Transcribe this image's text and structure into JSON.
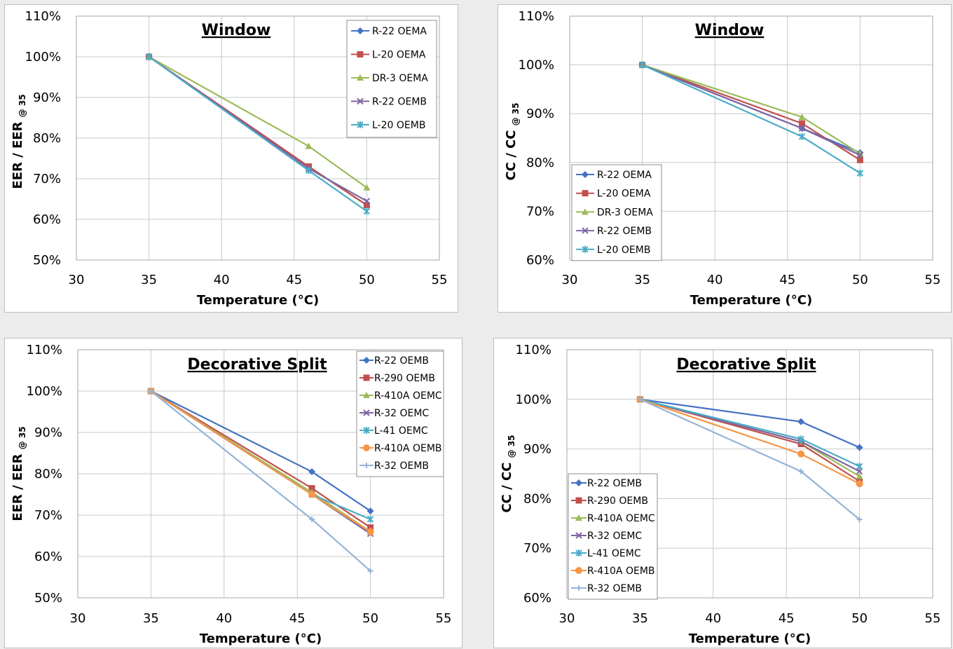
{
  "chart_data": [
    {
      "type": "line",
      "title": "Window",
      "xlabel": "Temperature (°C)",
      "ylabel_main": "EER / EER",
      "ylabel_sub": "@ 35",
      "xlim": [
        30,
        55
      ],
      "xticks": [
        30,
        35,
        40,
        45,
        50,
        55
      ],
      "ylim": [
        50,
        110
      ],
      "yticks": [
        50,
        60,
        70,
        80,
        90,
        100,
        110
      ],
      "y_format": "percent",
      "grid": true,
      "legend_position": "top-right",
      "x": [
        35,
        46,
        50
      ],
      "series": [
        {
          "name": "R-22 OEMA",
          "values": [
            100,
            73,
            63.5
          ],
          "color": "#4472c4",
          "marker": "diamond"
        },
        {
          "name": "L-20 OEMA",
          "values": [
            100,
            73,
            63.5
          ],
          "color": "#c0504d",
          "marker": "square"
        },
        {
          "name": "DR-3 OEMA",
          "values": [
            100,
            78,
            67.8
          ],
          "color": "#9bbb59",
          "marker": "triangle"
        },
        {
          "name": "R-22 OEMB",
          "values": [
            100,
            72.5,
            64.5
          ],
          "color": "#8064a2",
          "marker": "x"
        },
        {
          "name": "L-20 OEMB",
          "values": [
            100,
            72,
            62
          ],
          "color": "#4bacc6",
          "marker": "star"
        }
      ]
    },
    {
      "type": "line",
      "title": "Window",
      "xlabel": "Temperature (°C)",
      "ylabel_main": "CC / CC",
      "ylabel_sub": "@ 35",
      "xlim": [
        30,
        55
      ],
      "xticks": [
        30,
        35,
        40,
        45,
        50,
        55
      ],
      "ylim": [
        60,
        110
      ],
      "yticks": [
        60,
        70,
        80,
        90,
        100,
        110
      ],
      "y_format": "percent",
      "grid": true,
      "legend_position": "bottom-left",
      "x": [
        35,
        46,
        50
      ],
      "series": [
        {
          "name": "R-22 OEMA",
          "values": [
            100,
            87,
            82
          ],
          "color": "#4472c4",
          "marker": "diamond"
        },
        {
          "name": "L-20 OEMA",
          "values": [
            100,
            88,
            80.5
          ],
          "color": "#c0504d",
          "marker": "square"
        },
        {
          "name": "DR-3 OEMA",
          "values": [
            100,
            89.3,
            81.8
          ],
          "color": "#9bbb59",
          "marker": "triangle"
        },
        {
          "name": "R-22 OEMB",
          "values": [
            100,
            87,
            81.5
          ],
          "color": "#8064a2",
          "marker": "x"
        },
        {
          "name": "L-20 OEMB",
          "values": [
            100,
            85.3,
            77.8
          ],
          "color": "#4bacc6",
          "marker": "star"
        }
      ]
    },
    {
      "type": "line",
      "title": "Decorative Split",
      "xlabel": "Temperature (°C)",
      "ylabel_main": "EER / EER",
      "ylabel_sub": "@ 35",
      "xlim": [
        30,
        55
      ],
      "xticks": [
        30,
        35,
        40,
        45,
        50,
        55
      ],
      "ylim": [
        50,
        110
      ],
      "yticks": [
        50,
        60,
        70,
        80,
        90,
        100,
        110
      ],
      "y_format": "percent",
      "grid": true,
      "legend_position": "top-right",
      "x": [
        35,
        46,
        50
      ],
      "series": [
        {
          "name": "R-22 OEMB",
          "values": [
            100,
            80.5,
            71
          ],
          "color": "#4472c4",
          "marker": "diamond"
        },
        {
          "name": "R-290 OEMB",
          "values": [
            100,
            76.5,
            67
          ],
          "color": "#c0504d",
          "marker": "square"
        },
        {
          "name": "R-410A OEMC",
          "values": [
            100,
            75.5,
            66
          ],
          "color": "#9bbb59",
          "marker": "triangle"
        },
        {
          "name": "R-32 OEMC",
          "values": [
            100,
            75,
            65.5
          ],
          "color": "#8064a2",
          "marker": "x"
        },
        {
          "name": "L-41 OEMC",
          "values": [
            100,
            75,
            69
          ],
          "color": "#4bacc6",
          "marker": "star"
        },
        {
          "name": "R-410A OEMB",
          "values": [
            100,
            75,
            66
          ],
          "color": "#f79646",
          "marker": "circle"
        },
        {
          "name": "R-32 OEMB",
          "values": [
            100,
            69,
            56.5
          ],
          "color": "#95b3d7",
          "marker": "plus"
        }
      ]
    },
    {
      "type": "line",
      "title": "Decorative Split",
      "xlabel": "Temperature (°C)",
      "ylabel_main": "CC / CC",
      "ylabel_sub": "@ 35",
      "xlim": [
        30,
        55
      ],
      "xticks": [
        30,
        35,
        40,
        45,
        50,
        55
      ],
      "ylim": [
        60,
        110
      ],
      "yticks": [
        60,
        70,
        80,
        90,
        100,
        110
      ],
      "y_format": "percent",
      "grid": true,
      "legend_position": "bottom-left",
      "x": [
        35,
        46,
        50
      ],
      "series": [
        {
          "name": "R-22 OEMB",
          "values": [
            100,
            95.5,
            90.3
          ],
          "color": "#4472c4",
          "marker": "diamond"
        },
        {
          "name": "R-290 OEMB",
          "values": [
            100,
            91,
            83.5
          ],
          "color": "#c0504d",
          "marker": "square"
        },
        {
          "name": "R-410A OEMC",
          "values": [
            100,
            91.5,
            84.5
          ],
          "color": "#9bbb59",
          "marker": "triangle"
        },
        {
          "name": "R-32 OEMC",
          "values": [
            100,
            91.5,
            85.5
          ],
          "color": "#8064a2",
          "marker": "x"
        },
        {
          "name": "L-41 OEMC",
          "values": [
            100,
            92,
            86.5
          ],
          "color": "#4bacc6",
          "marker": "star"
        },
        {
          "name": "R-410A OEMB",
          "values": [
            100,
            89,
            83
          ],
          "color": "#f79646",
          "marker": "circle"
        },
        {
          "name": "R-32 OEMB",
          "values": [
            100,
            85.5,
            75.8
          ],
          "color": "#95b3d7",
          "marker": "plus"
        }
      ]
    }
  ]
}
